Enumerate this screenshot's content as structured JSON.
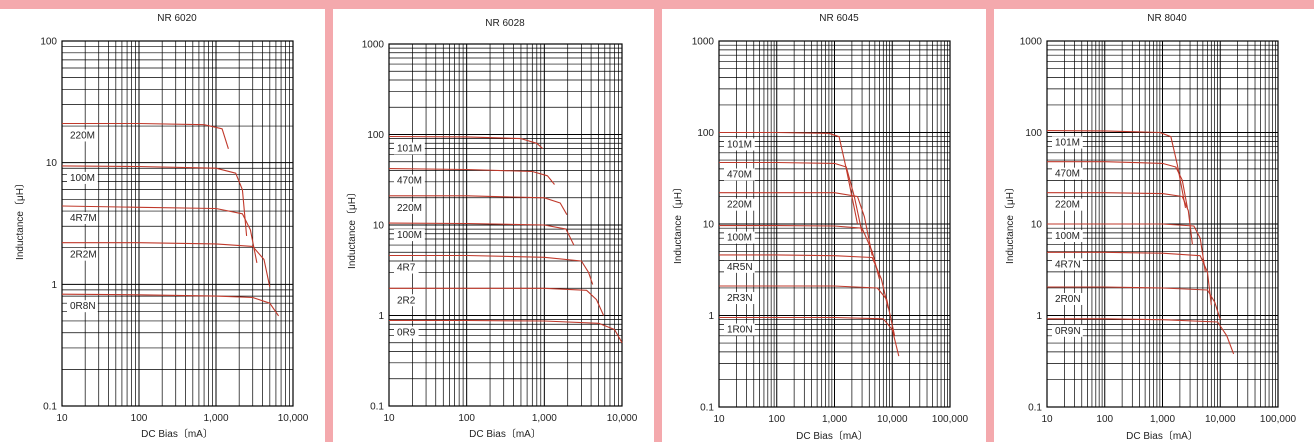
{
  "chart_data": [
    {
      "type": "line",
      "title": "NR 6020",
      "xlabel": "DC Bias〔mA〕",
      "ylabel": "Inductance〔μH〕",
      "xscale": "log",
      "yscale": "log",
      "xlim": [
        10,
        10000
      ],
      "ylim": [
        0.1,
        100
      ],
      "x_ticks": [
        "10",
        "100",
        "1,000",
        "10,000"
      ],
      "y_ticks": [
        "0.1",
        "1",
        "10",
        "100"
      ],
      "grid": true,
      "line_color": "#c0392b",
      "series": [
        {
          "name": "220M",
          "x": [
            10,
            100,
            700,
            1200,
            1450
          ],
          "y": [
            21,
            21,
            20.5,
            19,
            13
          ]
        },
        {
          "name": "100M",
          "x": [
            10,
            100,
            1000,
            1800,
            2200,
            2500
          ],
          "y": [
            9.4,
            9.3,
            9.0,
            8.2,
            6.0,
            2.5
          ]
        },
        {
          "name": "4R7M",
          "x": [
            10,
            100,
            1000,
            2200,
            2800,
            3400
          ],
          "y": [
            4.4,
            4.3,
            4.2,
            3.8,
            2.8,
            1.5
          ]
        },
        {
          "name": "2R2M",
          "x": [
            10,
            100,
            1000,
            3000,
            4200,
            5000
          ],
          "y": [
            2.2,
            2.2,
            2.15,
            2.05,
            1.6,
            0.95
          ]
        },
        {
          "name": "0R8N",
          "x": [
            10,
            100,
            1000,
            3000,
            5000,
            6500
          ],
          "y": [
            0.83,
            0.82,
            0.8,
            0.78,
            0.7,
            0.55
          ]
        }
      ]
    },
    {
      "type": "line",
      "title": "NR 6028",
      "xlabel": "DC Bias〔mA〕",
      "ylabel": "Inductance〔μH〕",
      "xscale": "log",
      "yscale": "log",
      "xlim": [
        10,
        10000
      ],
      "ylim": [
        0.1,
        1000
      ],
      "x_ticks": [
        "10",
        "100",
        "1,000",
        "10,000"
      ],
      "y_ticks": [
        "0.1",
        "1",
        "10",
        "100",
        "1000"
      ],
      "grid": true,
      "line_color": "#c0392b",
      "series": [
        {
          "name": "101M",
          "x": [
            10,
            100,
            500,
            800,
            950
          ],
          "y": [
            95,
            94,
            90,
            80,
            70
          ]
        },
        {
          "name": "470M",
          "x": [
            10,
            100,
            700,
            1100,
            1350
          ],
          "y": [
            42,
            41,
            39,
            35,
            28
          ]
        },
        {
          "name": "220M",
          "x": [
            10,
            100,
            1000,
            1600,
            1950
          ],
          "y": [
            21,
            21,
            20,
            17.5,
            13
          ]
        },
        {
          "name": "100M",
          "x": [
            10,
            100,
            1000,
            1900,
            2400
          ],
          "y": [
            10.5,
            10.4,
            10,
            9,
            6
          ]
        },
        {
          "name": "4R7",
          "x": [
            10,
            100,
            1000,
            3000,
            3700,
            4200
          ],
          "y": [
            4.6,
            4.6,
            4.4,
            4,
            3,
            2.2
          ]
        },
        {
          "name": "2R2",
          "x": [
            10,
            100,
            1000,
            3500,
            4700,
            5800
          ],
          "y": [
            2,
            2,
            2,
            1.9,
            1.5,
            1
          ]
        },
        {
          "name": "0R9",
          "x": [
            10,
            100,
            1000,
            5000,
            8000,
            10000
          ],
          "y": [
            0.88,
            0.88,
            0.87,
            0.82,
            0.7,
            0.5
          ]
        }
      ]
    },
    {
      "type": "line",
      "title": "NR 6045",
      "xlabel": "DC Bias〔mA〕",
      "ylabel": "Inductance〔μH〕",
      "xscale": "log",
      "yscale": "log",
      "xlim": [
        10,
        100000
      ],
      "ylim": [
        0.1,
        1000
      ],
      "x_ticks": [
        "10",
        "100",
        "1,000",
        "10,000",
        "100,000"
      ],
      "y_ticks": [
        "0.1",
        "1",
        "10",
        "100",
        "1000"
      ],
      "grid": true,
      "line_color": "#c0392b",
      "series": [
        {
          "name": "101M",
          "x": [
            10,
            100,
            800,
            1200,
            1600,
            2500
          ],
          "y": [
            100,
            100,
            98,
            90,
            40,
            10
          ]
        },
        {
          "name": "470M",
          "x": [
            10,
            100,
            1000,
            1600,
            2200,
            3000
          ],
          "y": [
            47,
            47,
            46,
            42,
            20,
            8
          ]
        },
        {
          "name": "220M",
          "x": [
            10,
            100,
            1000,
            2500,
            3300,
            4500
          ],
          "y": [
            22,
            22,
            22,
            20,
            12,
            4.5
          ]
        },
        {
          "name": "100M",
          "x": [
            10,
            100,
            1000,
            3000,
            4500,
            6000
          ],
          "y": [
            9.6,
            9.6,
            9.5,
            9,
            5,
            2.5
          ]
        },
        {
          "name": "4R5N",
          "x": [
            10,
            100,
            1000,
            4500,
            6500,
            8500
          ],
          "y": [
            4.6,
            4.6,
            4.5,
            4.3,
            2.5,
            1.2
          ]
        },
        {
          "name": "2R3N",
          "x": [
            10,
            100,
            1000,
            5500,
            8000,
            11000
          ],
          "y": [
            2.1,
            2.1,
            2.1,
            2,
            1.5,
            0.6
          ]
        },
        {
          "name": "1R0N",
          "x": [
            10,
            100,
            1000,
            7000,
            10000,
            13000
          ],
          "y": [
            0.95,
            0.95,
            0.95,
            0.92,
            0.7,
            0.36
          ]
        }
      ]
    },
    {
      "type": "line",
      "title": "NR 8040",
      "xlabel": "DC Bias〔mA〕",
      "ylabel": "Inductance〔μH〕",
      "xscale": "log",
      "yscale": "log",
      "xlim": [
        10,
        100000
      ],
      "ylim": [
        0.1,
        1000
      ],
      "x_ticks": [
        "10",
        "100",
        "1,000",
        "10,000",
        "100,000"
      ],
      "y_ticks": [
        "0.1",
        "1",
        "10",
        "100",
        "1000"
      ],
      "grid": true,
      "line_color": "#c0392b",
      "series": [
        {
          "name": "101M",
          "x": [
            10,
            100,
            900,
            1400,
            1800,
            2500
          ],
          "y": [
            105,
            104,
            100,
            90,
            45,
            15
          ]
        },
        {
          "name": "470M",
          "x": [
            10,
            100,
            1000,
            1700,
            2200,
            2700
          ],
          "y": [
            48,
            48,
            46,
            42,
            30,
            15
          ]
        },
        {
          "name": "220M",
          "x": [
            10,
            100,
            1000,
            2200,
            2800,
            3300
          ],
          "y": [
            22,
            22,
            21.5,
            20,
            14,
            6
          ]
        },
        {
          "name": "100M",
          "x": [
            10,
            100,
            1000,
            3500,
            4500,
            5500
          ],
          "y": [
            10,
            10,
            10,
            9.5,
            7,
            3
          ]
        },
        {
          "name": "4R7N",
          "x": [
            10,
            100,
            1000,
            4500,
            6000,
            7000
          ],
          "y": [
            4.9,
            4.9,
            4.8,
            4.5,
            3,
            1.3
          ]
        },
        {
          "name": "2R0N",
          "x": [
            10,
            100,
            1000,
            6000,
            8000,
            10000
          ],
          "y": [
            2.05,
            2.05,
            2,
            1.9,
            1.4,
            0.9
          ]
        },
        {
          "name": "0R9N",
          "x": [
            10,
            100,
            1000,
            9000,
            13000,
            17000
          ],
          "y": [
            0.92,
            0.92,
            0.9,
            0.85,
            0.6,
            0.38
          ]
        }
      ]
    }
  ]
}
